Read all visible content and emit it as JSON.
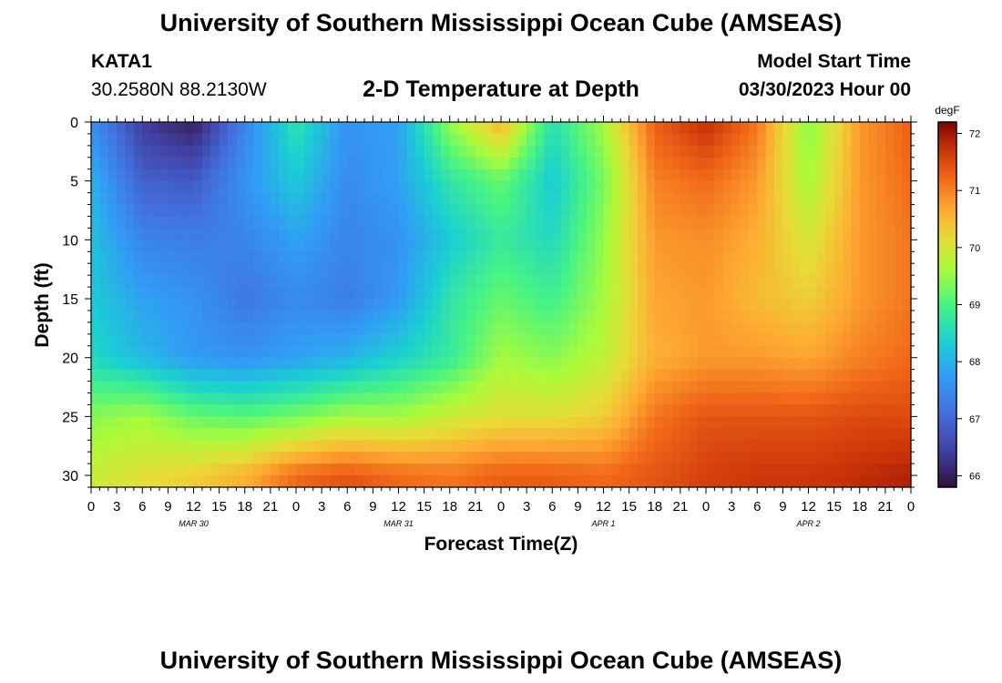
{
  "page": {
    "title": "University of Southern Mississippi Ocean Cube (AMSEAS)",
    "station": "KATA1",
    "coordinates": "30.2580N  88.2130W",
    "model_start_label": "Model Start Time",
    "model_start_value": "03/30/2023 Hour 00",
    "footer_title": "University of Southern Mississippi Ocean Cube (AMSEAS)"
  },
  "chart_data": {
    "type": "heatmap",
    "title": "2-D Temperature at Depth",
    "xlabel": "Forecast Time(Z)",
    "ylabel": "Depth (ft)",
    "x_tick_labels": [
      "0",
      "3",
      "6",
      "9",
      "12",
      "15",
      "18",
      "21",
      "0",
      "3",
      "6",
      "9",
      "12",
      "15",
      "18",
      "21",
      "0",
      "3",
      "6",
      "9",
      "12",
      "15",
      "18",
      "21",
      "0",
      "3",
      "6",
      "9",
      "12",
      "15",
      "18",
      "21",
      "0"
    ],
    "date_labels": [
      {
        "label": "MAR 30",
        "hour": 12
      },
      {
        "label": "MAR 31",
        "hour": 36
      },
      {
        "label": "APR 1",
        "hour": 60
      },
      {
        "label": "APR 2",
        "hour": 84
      }
    ],
    "xlim": [
      0,
      96
    ],
    "ylim": [
      0,
      31
    ],
    "y_ticks": [
      0,
      5,
      10,
      15,
      20,
      25,
      30
    ],
    "y_tick_labels": [
      "0",
      "5",
      "10",
      "15",
      "20",
      "25",
      "30"
    ],
    "colorbar": {
      "unit": "degF",
      "range": [
        65.8,
        72.2
      ],
      "ticks": [
        66,
        67,
        68,
        69,
        70,
        71,
        72
      ],
      "tick_labels": [
        "66",
        "67",
        "68",
        "69",
        "70",
        "71",
        "72"
      ]
    },
    "grid_hours": [
      0,
      6,
      12,
      18,
      24,
      30,
      36,
      42,
      48,
      54,
      60,
      66,
      72,
      78,
      84,
      90,
      96
    ],
    "grid_depths_ft": [
      0,
      5,
      10,
      15,
      20,
      25,
      30
    ],
    "temperature_degF": [
      [
        67.6,
        66.4,
        66.0,
        67.4,
        68.7,
        67.6,
        67.8,
        69.5,
        70.6,
        68.6,
        69.6,
        71.3,
        71.8,
        71.1,
        69.4,
        70.8,
        71.3
      ],
      [
        68.0,
        66.9,
        66.8,
        67.6,
        68.3,
        67.5,
        67.8,
        68.7,
        69.2,
        68.3,
        69.3,
        71.0,
        71.2,
        70.8,
        69.6,
        70.8,
        71.2
      ],
      [
        68.2,
        67.4,
        67.3,
        67.4,
        67.8,
        67.4,
        67.6,
        68.3,
        68.8,
        68.5,
        69.5,
        70.8,
        70.9,
        70.6,
        70.0,
        70.8,
        71.1
      ],
      [
        68.3,
        67.8,
        67.6,
        67.2,
        67.5,
        67.3,
        67.7,
        68.7,
        69.2,
        68.9,
        69.6,
        70.7,
        70.8,
        70.5,
        70.3,
        70.8,
        71.1
      ],
      [
        68.5,
        68.1,
        67.7,
        67.6,
        67.8,
        68.0,
        68.4,
        68.8,
        69.6,
        69.4,
        69.8,
        70.6,
        70.8,
        70.8,
        70.7,
        71.0,
        71.2
      ],
      [
        69.4,
        69.6,
        69.2,
        69.1,
        69.3,
        69.6,
        69.6,
        69.9,
        70.1,
        70.1,
        70.3,
        71.1,
        71.4,
        71.4,
        71.4,
        71.5,
        71.5
      ],
      [
        69.9,
        70.1,
        70.3,
        70.6,
        71.2,
        71.4,
        71.2,
        71.1,
        71.3,
        71.3,
        71.2,
        71.4,
        71.6,
        71.7,
        71.7,
        71.8,
        71.9
      ]
    ]
  }
}
